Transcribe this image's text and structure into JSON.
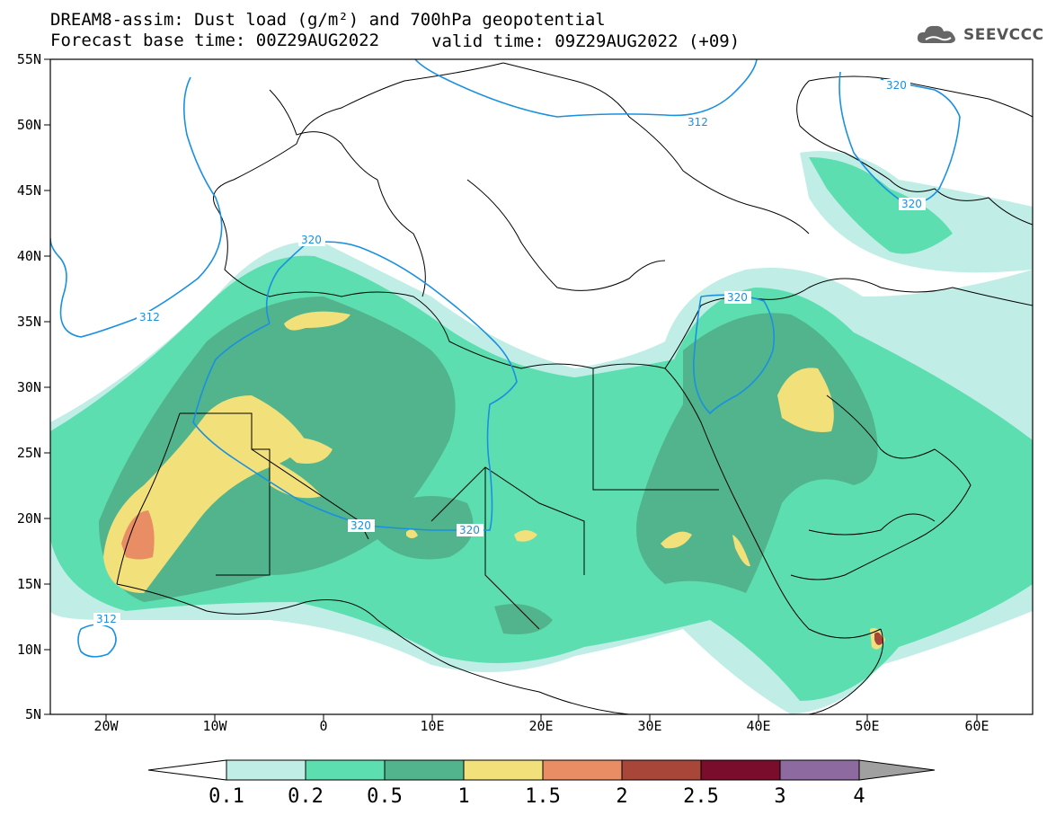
{
  "header": {
    "title_line1": "DREAM8-assim: Dust load (g/m²) and 700hPa geopotential",
    "title_line2": "Forecast base time: 00Z29AUG2022",
    "valid_time": "valid time: 09Z29AUG2022 (+09)"
  },
  "logo": {
    "text": "SEEVCCC",
    "icon": "cloud-icon"
  },
  "map": {
    "lon_ticks": [
      "20W",
      "10W",
      "0",
      "10E",
      "20E",
      "30E",
      "40E",
      "50E",
      "60E"
    ],
    "lat_ticks": [
      "55N",
      "50N",
      "45N",
      "40N",
      "35N",
      "30N",
      "25N",
      "20N",
      "15N",
      "10N",
      "5N"
    ],
    "contour_labels": [
      "312",
      "320",
      "312",
      "320",
      "320",
      "320",
      "312",
      "320",
      "320"
    ]
  },
  "colorbar": {
    "labels": [
      "0.1",
      "0.2",
      "0.5",
      "1",
      "1.5",
      "2",
      "2.5",
      "3",
      "4"
    ],
    "colors": [
      "#c0eee6",
      "#5ddeb0",
      "#52b48c",
      "#f2e07a",
      "#e98e64",
      "#a8463a",
      "#7a0c2c",
      "#8d6aa0"
    ],
    "under_color": "#ffffff",
    "over_color": "#a0a0a0"
  },
  "colors": {
    "contour": "#1a90e0",
    "border": "#000000"
  }
}
